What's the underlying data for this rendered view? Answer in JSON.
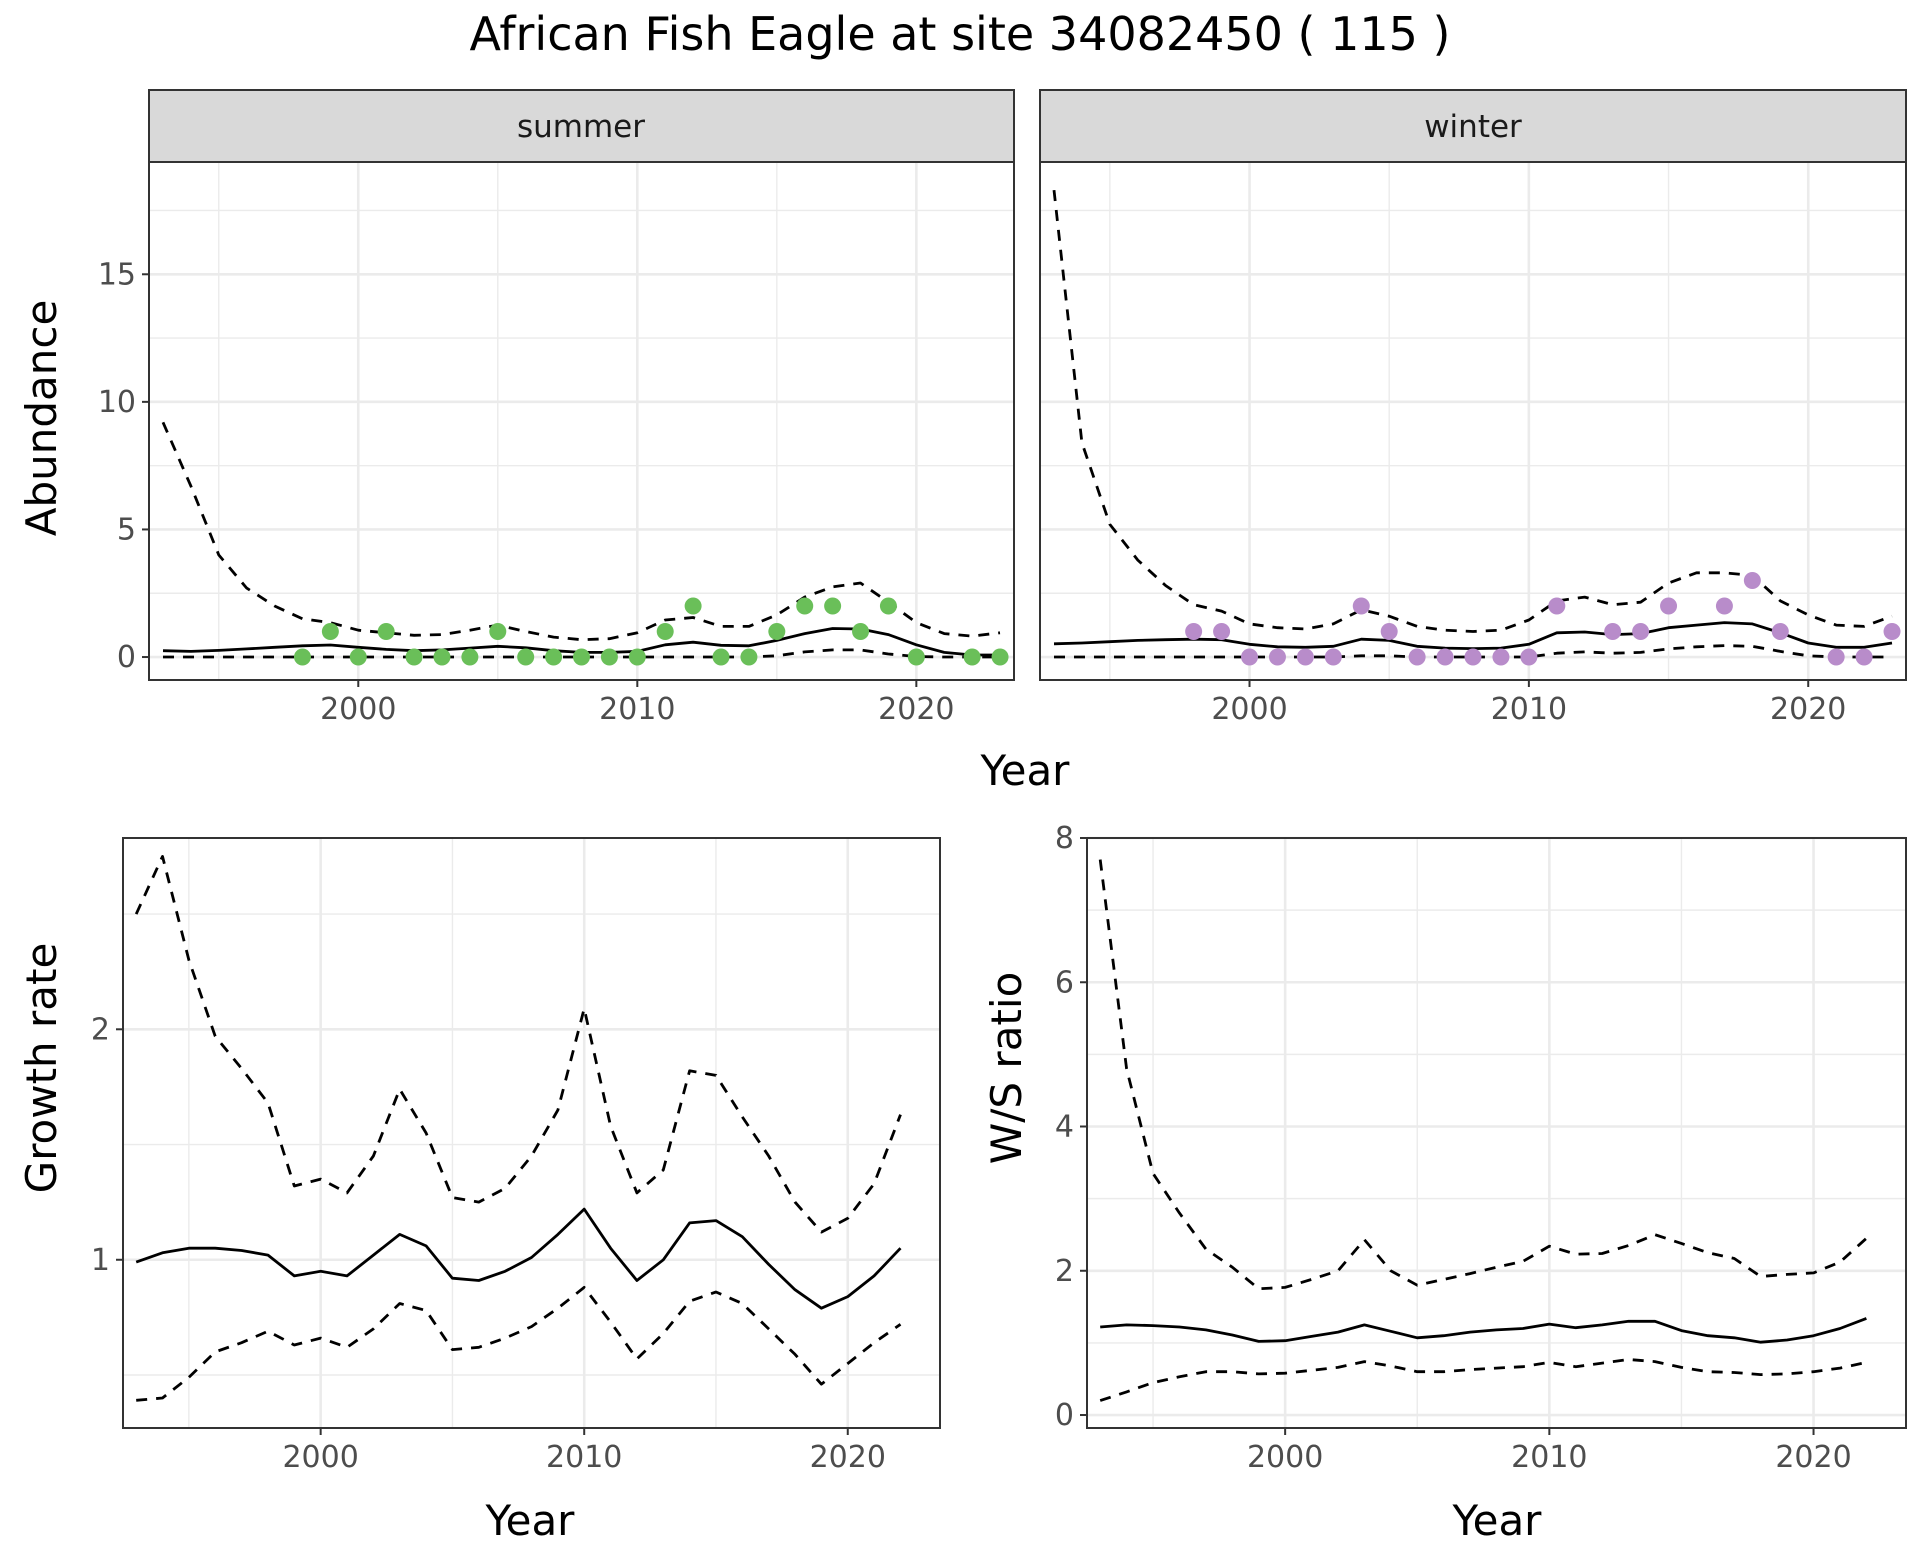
{
  "title": "African Fish Eagle at site 34082450 ( 115 )",
  "colors": {
    "summer_points": "#6abf59",
    "winter_points": "#b88cca",
    "line": "#000000",
    "grid": "#ebebeb",
    "strip_bg": "#d9d9d9"
  },
  "chart_data": [
    {
      "type": "line",
      "panel": "summer",
      "strip_label": "summer",
      "xlabel": "Year",
      "ylabel": "Abundance",
      "xlim": [
        1992.5,
        2023.5
      ],
      "ylim": [
        -0.9,
        19.4
      ],
      "x_ticks": [
        2000,
        2010,
        2020
      ],
      "y_ticks": [
        0,
        5,
        10,
        15
      ],
      "grid": true,
      "points": {
        "color": "#6abf59",
        "x": [
          1998,
          1999,
          2000,
          2001,
          2002,
          2003,
          2004,
          2005,
          2006,
          2007,
          2008,
          2009,
          2010,
          2011,
          2012,
          2013,
          2014,
          2015,
          2016,
          2017,
          2018,
          2019,
          2020,
          2022,
          2023
        ],
        "y": [
          0,
          1,
          0,
          1,
          0,
          0,
          0,
          1,
          0,
          0,
          0,
          0,
          0,
          1,
          2,
          0,
          0,
          1,
          2,
          2,
          1,
          2,
          0,
          0,
          0
        ]
      },
      "series": [
        {
          "style": "solid",
          "x": [
            1993,
            1994,
            1995,
            1996,
            1997,
            1998,
            1999,
            2000,
            2001,
            2002,
            2003,
            2004,
            2005,
            2006,
            2007,
            2008,
            2009,
            2010,
            2011,
            2012,
            2013,
            2014,
            2015,
            2016,
            2017,
            2018,
            2019,
            2020,
            2021,
            2022,
            2023
          ],
          "y": [
            0.25,
            0.22,
            0.26,
            0.32,
            0.38,
            0.44,
            0.47,
            0.38,
            0.3,
            0.25,
            0.28,
            0.35,
            0.42,
            0.36,
            0.25,
            0.18,
            0.18,
            0.22,
            0.48,
            0.58,
            0.46,
            0.44,
            0.65,
            0.92,
            1.12,
            1.1,
            0.88,
            0.48,
            0.18,
            0.08,
            0.08
          ]
        },
        {
          "style": "dashed",
          "x": [
            1993,
            1994,
            1995,
            1996,
            1997,
            1998,
            1999,
            2000,
            2001,
            2002,
            2003,
            2004,
            2005,
            2006,
            2007,
            2008,
            2009,
            2010,
            2011,
            2012,
            2013,
            2014,
            2015,
            2016,
            2017,
            2018,
            2019,
            2020,
            2021,
            2022,
            2023
          ],
          "y": [
            9.2,
            6.7,
            4.0,
            2.7,
            2.0,
            1.5,
            1.35,
            1.05,
            0.95,
            0.85,
            0.88,
            1.05,
            1.25,
            1.0,
            0.78,
            0.68,
            0.72,
            0.95,
            1.45,
            1.55,
            1.2,
            1.2,
            1.65,
            2.35,
            2.75,
            2.9,
            2.15,
            1.35,
            0.92,
            0.82,
            0.95
          ]
        },
        {
          "style": "dashed",
          "x": [
            1993,
            1994,
            1995,
            1996,
            1997,
            1998,
            1999,
            2000,
            2001,
            2002,
            2003,
            2004,
            2005,
            2006,
            2007,
            2008,
            2009,
            2010,
            2011,
            2012,
            2013,
            2014,
            2015,
            2016,
            2017,
            2018,
            2019,
            2020,
            2021,
            2022,
            2023
          ],
          "y": [
            0,
            0,
            0,
            0,
            0,
            0,
            0,
            0,
            0,
            0,
            0,
            0,
            0,
            0,
            0,
            0,
            0,
            0,
            0,
            0,
            0,
            0,
            0.05,
            0.2,
            0.28,
            0.28,
            0.12,
            0.02,
            0,
            0,
            0
          ]
        }
      ]
    },
    {
      "type": "line",
      "panel": "winter",
      "strip_label": "winter",
      "xlabel": "Year",
      "ylabel": "Abundance",
      "xlim": [
        1992.5,
        2023.5
      ],
      "ylim": [
        -0.9,
        19.4
      ],
      "x_ticks": [
        2000,
        2010,
        2020
      ],
      "y_ticks": [
        0,
        5,
        10,
        15
      ],
      "grid": true,
      "points": {
        "color": "#b88cca",
        "x": [
          1998,
          1999,
          2000,
          2001,
          2002,
          2003,
          2004,
          2005,
          2006,
          2007,
          2008,
          2009,
          2010,
          2011,
          2013,
          2014,
          2015,
          2017,
          2018,
          2019,
          2021,
          2022,
          2023
        ],
        "y": [
          1,
          1,
          0,
          0,
          0,
          0,
          2,
          1,
          0,
          0,
          0,
          0,
          0,
          2,
          1,
          1,
          2,
          2,
          3,
          1,
          0,
          0,
          1
        ]
      },
      "series": [
        {
          "style": "solid",
          "x": [
            1993,
            1994,
            1995,
            1996,
            1997,
            1998,
            1999,
            2000,
            2001,
            2002,
            2003,
            2004,
            2005,
            2006,
            2007,
            2008,
            2009,
            2010,
            2011,
            2012,
            2013,
            2014,
            2015,
            2016,
            2017,
            2018,
            2019,
            2020,
            2021,
            2022,
            2023
          ],
          "y": [
            0.52,
            0.55,
            0.6,
            0.65,
            0.68,
            0.7,
            0.68,
            0.5,
            0.4,
            0.38,
            0.42,
            0.7,
            0.65,
            0.42,
            0.35,
            0.33,
            0.35,
            0.5,
            0.95,
            0.98,
            0.88,
            0.92,
            1.15,
            1.25,
            1.35,
            1.3,
            0.95,
            0.55,
            0.38,
            0.38,
            0.55
          ]
        },
        {
          "style": "dashed",
          "x": [
            1993,
            1994,
            1995,
            1996,
            1997,
            1998,
            1999,
            2000,
            2001,
            2002,
            2003,
            2004,
            2005,
            2006,
            2007,
            2008,
            2009,
            2010,
            2011,
            2012,
            2013,
            2014,
            2015,
            2016,
            2017,
            2018,
            2019,
            2020,
            2021,
            2022,
            2023
          ],
          "y": [
            18.3,
            8.4,
            5.2,
            3.8,
            2.8,
            2.05,
            1.8,
            1.3,
            1.15,
            1.1,
            1.3,
            1.85,
            1.6,
            1.2,
            1.05,
            1.0,
            1.05,
            1.45,
            2.2,
            2.35,
            2.05,
            2.15,
            2.9,
            3.3,
            3.3,
            3.2,
            2.2,
            1.65,
            1.25,
            1.2,
            1.6
          ]
        },
        {
          "style": "dashed",
          "x": [
            1993,
            1994,
            1995,
            1996,
            1997,
            1998,
            1999,
            2000,
            2001,
            2002,
            2003,
            2004,
            2005,
            2006,
            2007,
            2008,
            2009,
            2010,
            2011,
            2012,
            2013,
            2014,
            2015,
            2016,
            2017,
            2018,
            2019,
            2020,
            2021,
            2022,
            2023
          ],
          "y": [
            0,
            0,
            0,
            0,
            0,
            0,
            0,
            0,
            0,
            0,
            0,
            0.05,
            0.05,
            0,
            0,
            0,
            0,
            0,
            0.15,
            0.2,
            0.15,
            0.18,
            0.32,
            0.4,
            0.45,
            0.42,
            0.22,
            0.05,
            0,
            0,
            0
          ]
        }
      ]
    },
    {
      "type": "line",
      "panel": "growth",
      "xlabel": "Year",
      "ylabel": "Growth rate",
      "xlim": [
        1992.5,
        2023.5
      ],
      "ylim": [
        0.27,
        2.83
      ],
      "x_ticks": [
        2000,
        2010,
        2020
      ],
      "y_ticks": [
        1,
        2
      ],
      "grid": true,
      "series": [
        {
          "style": "solid",
          "x": [
            1993,
            1994,
            1995,
            1996,
            1997,
            1998,
            1999,
            2000,
            2001,
            2002,
            2003,
            2004,
            2005,
            2006,
            2007,
            2008,
            2009,
            2010,
            2011,
            2012,
            2013,
            2014,
            2015,
            2016,
            2017,
            2018,
            2019,
            2020,
            2021,
            2022
          ],
          "y": [
            0.99,
            1.03,
            1.05,
            1.05,
            1.04,
            1.02,
            0.93,
            0.95,
            0.93,
            1.02,
            1.11,
            1.06,
            0.92,
            0.91,
            0.95,
            1.01,
            1.11,
            1.22,
            1.05,
            0.91,
            1.0,
            1.16,
            1.17,
            1.1,
            0.98,
            0.87,
            0.79,
            0.84,
            0.93,
            1.05
          ]
        },
        {
          "style": "dashed",
          "x": [
            1993,
            1994,
            1995,
            1996,
            1997,
            1998,
            1999,
            2000,
            2001,
            2002,
            2003,
            2004,
            2005,
            2006,
            2007,
            2008,
            2009,
            2010,
            2011,
            2012,
            2013,
            2014,
            2015,
            2016,
            2017,
            2018,
            2019,
            2020,
            2021,
            2022
          ],
          "y": [
            2.5,
            2.75,
            2.3,
            1.97,
            1.83,
            1.68,
            1.32,
            1.35,
            1.29,
            1.45,
            1.74,
            1.55,
            1.27,
            1.25,
            1.31,
            1.45,
            1.65,
            2.09,
            1.58,
            1.29,
            1.39,
            1.82,
            1.8,
            1.62,
            1.45,
            1.25,
            1.12,
            1.18,
            1.33,
            1.63
          ]
        },
        {
          "style": "dashed",
          "x": [
            1993,
            1994,
            1995,
            1996,
            1997,
            1998,
            1999,
            2000,
            2001,
            2002,
            2003,
            2004,
            2005,
            2006,
            2007,
            2008,
            2009,
            2010,
            2011,
            2012,
            2013,
            2014,
            2015,
            2016,
            2017,
            2018,
            2019,
            2020,
            2021,
            2022
          ],
          "y": [
            0.39,
            0.4,
            0.49,
            0.6,
            0.64,
            0.69,
            0.63,
            0.66,
            0.62,
            0.7,
            0.81,
            0.78,
            0.61,
            0.62,
            0.66,
            0.71,
            0.79,
            0.88,
            0.73,
            0.57,
            0.68,
            0.82,
            0.86,
            0.81,
            0.7,
            0.59,
            0.46,
            0.55,
            0.64,
            0.72
          ]
        }
      ]
    },
    {
      "type": "line",
      "panel": "ws",
      "xlabel": "Year",
      "ylabel": "W/S ratio",
      "xlim": [
        1992.5,
        2023.5
      ],
      "ylim": [
        -0.18,
        8.0
      ],
      "x_ticks": [
        2000,
        2010,
        2020
      ],
      "y_ticks": [
        0,
        2,
        4,
        6,
        8
      ],
      "grid": true,
      "series": [
        {
          "style": "solid",
          "x": [
            1993,
            1994,
            1995,
            1996,
            1997,
            1998,
            1999,
            2000,
            2001,
            2002,
            2003,
            2004,
            2005,
            2006,
            2007,
            2008,
            2009,
            2010,
            2011,
            2012,
            2013,
            2014,
            2015,
            2016,
            2017,
            2018,
            2019,
            2020,
            2021,
            2022
          ],
          "y": [
            1.22,
            1.25,
            1.24,
            1.22,
            1.18,
            1.11,
            1.02,
            1.03,
            1.09,
            1.15,
            1.25,
            1.16,
            1.07,
            1.1,
            1.15,
            1.18,
            1.2,
            1.26,
            1.21,
            1.25,
            1.3,
            1.3,
            1.17,
            1.1,
            1.07,
            1.01,
            1.04,
            1.1,
            1.2,
            1.34
          ]
        },
        {
          "style": "dashed",
          "x": [
            1993,
            1994,
            1995,
            1996,
            1997,
            1998,
            1999,
            2000,
            2001,
            2002,
            2003,
            2004,
            2005,
            2006,
            2007,
            2008,
            2009,
            2010,
            2011,
            2012,
            2013,
            2014,
            2015,
            2016,
            2017,
            2018,
            2019,
            2020,
            2021,
            2022
          ],
          "y": [
            7.7,
            4.8,
            3.35,
            2.8,
            2.3,
            2.05,
            1.75,
            1.77,
            1.88,
            2.0,
            2.43,
            2.0,
            1.8,
            1.88,
            1.96,
            2.05,
            2.13,
            2.34,
            2.23,
            2.24,
            2.35,
            2.5,
            2.38,
            2.25,
            2.17,
            1.92,
            1.95,
            1.97,
            2.12,
            2.45
          ]
        },
        {
          "style": "dashed",
          "x": [
            1993,
            1994,
            1995,
            1996,
            1997,
            1998,
            1999,
            2000,
            2001,
            2002,
            2003,
            2004,
            2005,
            2006,
            2007,
            2008,
            2009,
            2010,
            2011,
            2012,
            2013,
            2014,
            2015,
            2016,
            2017,
            2018,
            2019,
            2020,
            2021,
            2022
          ],
          "y": [
            0.2,
            0.32,
            0.45,
            0.53,
            0.6,
            0.6,
            0.57,
            0.58,
            0.62,
            0.66,
            0.74,
            0.68,
            0.6,
            0.6,
            0.63,
            0.65,
            0.67,
            0.73,
            0.67,
            0.72,
            0.77,
            0.74,
            0.66,
            0.6,
            0.59,
            0.56,
            0.57,
            0.6,
            0.65,
            0.73
          ]
        }
      ]
    }
  ]
}
